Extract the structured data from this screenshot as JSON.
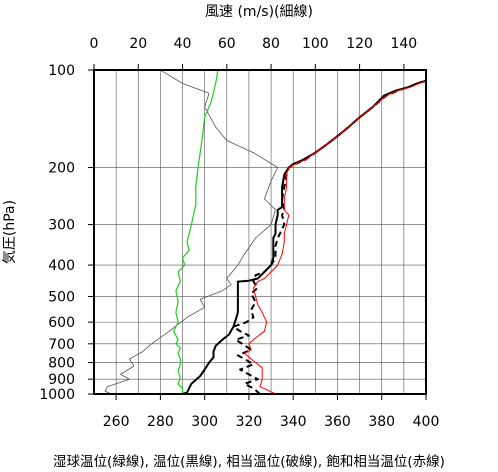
{
  "chart_data": {
    "type": "line",
    "top_axis_title": "風速 (m/s)(細線)",
    "left_axis_title": "気圧(hPa)",
    "bottom_caption": "湿球温位(緑線), 温位(黒線), 相当温位(破線), 飽和相当温位(赤線)",
    "x_temperature": {
      "range": [
        250,
        400
      ],
      "ticks": [
        "260",
        "280",
        "300",
        "320",
        "340",
        "360",
        "380",
        "400"
      ],
      "tick_values": [
        260,
        280,
        300,
        320,
        340,
        360,
        380,
        400
      ]
    },
    "x_wind": {
      "range": [
        0,
        150
      ],
      "ticks": [
        "0",
        "20",
        "40",
        "60",
        "80",
        "100",
        "120",
        "140"
      ],
      "tick_values": [
        0,
        20,
        40,
        60,
        80,
        100,
        120,
        140
      ]
    },
    "y_pressure": {
      "scale": "log",
      "range": [
        1000,
        100
      ],
      "ticks": [
        "100",
        "200",
        "300",
        "400",
        "500",
        "600",
        "700",
        "800",
        "900",
        "1000"
      ],
      "tick_values": [
        100,
        200,
        300,
        400,
        500,
        600,
        700,
        800,
        900,
        1000
      ]
    },
    "grid": true,
    "series": [
      {
        "key": "wind",
        "axis": "wind",
        "color": "#555555",
        "width": 0.8,
        "dash": "",
        "points": [
          [
            8,
            1000
          ],
          [
            5,
            980
          ],
          [
            6,
            950
          ],
          [
            12,
            920
          ],
          [
            16,
            900
          ],
          [
            12,
            870
          ],
          [
            18,
            820
          ],
          [
            16,
            780
          ],
          [
            22,
            740
          ],
          [
            26,
            700
          ],
          [
            34,
            640
          ],
          [
            42,
            580
          ],
          [
            50,
            540
          ],
          [
            48,
            510
          ],
          [
            58,
            480
          ],
          [
            62,
            460
          ],
          [
            60,
            440
          ],
          [
            65,
            400
          ],
          [
            68,
            370
          ],
          [
            73,
            330
          ],
          [
            80,
            300
          ],
          [
            82,
            270
          ],
          [
            77,
            250
          ],
          [
            80,
            220
          ],
          [
            83,
            200
          ],
          [
            72,
            180
          ],
          [
            60,
            165
          ],
          [
            55,
            150
          ],
          [
            50,
            130
          ],
          [
            52,
            118
          ],
          [
            40,
            110
          ],
          [
            32,
            102
          ],
          [
            30,
            100
          ]
        ]
      },
      {
        "key": "wet_bulb_potential_temperature",
        "axis": "temperature",
        "color": "#22cc22",
        "width": 1.2,
        "dash": "",
        "points": [
          [
            290,
            1000
          ],
          [
            290,
            960
          ],
          [
            288,
            930
          ],
          [
            289,
            890
          ],
          [
            288,
            850
          ],
          [
            289,
            810
          ],
          [
            289,
            780
          ],
          [
            288,
            750
          ],
          [
            289,
            720
          ],
          [
            287,
            700
          ],
          [
            288,
            680
          ],
          [
            286,
            640
          ],
          [
            288,
            600
          ],
          [
            287,
            560
          ],
          [
            288,
            520
          ],
          [
            287,
            480
          ],
          [
            289,
            450
          ],
          [
            288,
            420
          ],
          [
            291,
            400
          ],
          [
            290,
            380
          ],
          [
            293,
            360
          ],
          [
            292,
            340
          ],
          [
            294,
            300
          ],
          [
            296,
            260
          ],
          [
            296,
            230
          ],
          [
            297,
            200
          ],
          [
            298,
            180
          ],
          [
            299,
            160
          ],
          [
            300,
            140
          ],
          [
            303,
            125
          ],
          [
            305,
            110
          ],
          [
            306,
            100
          ]
        ]
      },
      {
        "key": "potential_temperature",
        "axis": "temperature",
        "color": "#000000",
        "width": 2.0,
        "dash": "",
        "points": [
          [
            290,
            1000
          ],
          [
            292,
            990
          ],
          [
            294,
            930
          ],
          [
            298,
            880
          ],
          [
            300,
            840
          ],
          [
            302,
            800
          ],
          [
            304,
            770
          ],
          [
            304,
            740
          ],
          [
            305,
            710
          ],
          [
            308,
            680
          ],
          [
            311,
            655
          ],
          [
            313,
            620
          ],
          [
            314,
            590
          ],
          [
            315,
            560
          ],
          [
            315,
            520
          ],
          [
            315,
            480
          ],
          [
            315,
            450
          ],
          [
            320,
            447
          ],
          [
            324,
            440
          ],
          [
            327,
            420
          ],
          [
            330,
            400
          ],
          [
            331,
            380
          ],
          [
            331,
            350
          ],
          [
            331,
            330
          ],
          [
            332,
            320
          ],
          [
            332,
            300
          ],
          [
            333,
            280
          ],
          [
            333,
            270
          ],
          [
            335,
            265
          ],
          [
            335,
            250
          ],
          [
            335,
            230
          ],
          [
            336,
            210
          ],
          [
            338,
            200
          ],
          [
            340,
            195
          ],
          [
            344,
            190
          ],
          [
            350,
            180
          ],
          [
            355,
            170
          ],
          [
            360,
            160
          ],
          [
            365,
            150
          ],
          [
            370,
            140
          ],
          [
            376,
            130
          ],
          [
            381,
            120
          ],
          [
            386,
            116
          ],
          [
            392,
            113
          ],
          [
            396,
            110
          ],
          [
            400,
            108
          ]
        ]
      },
      {
        "key": "equivalent_potential_temperature",
        "axis": "temperature",
        "color": "#000000",
        "width": 2.0,
        "dash": "6,4",
        "points": [
          [
            325,
            1000
          ],
          [
            322,
            960
          ],
          [
            318,
            930
          ],
          [
            324,
            900
          ],
          [
            320,
            870
          ],
          [
            316,
            840
          ],
          [
            322,
            810
          ],
          [
            318,
            780
          ],
          [
            315,
            760
          ],
          [
            321,
            730
          ],
          [
            317,
            700
          ],
          [
            314,
            680
          ],
          [
            320,
            660
          ],
          [
            316,
            640
          ],
          [
            313,
            620
          ],
          [
            319,
            600
          ],
          [
            322,
            580
          ],
          [
            321,
            550
          ],
          [
            323,
            520
          ],
          [
            321,
            490
          ],
          [
            324,
            470
          ],
          [
            322,
            450
          ],
          [
            323,
            430
          ],
          [
            327,
            420
          ],
          [
            330,
            400
          ],
          [
            332,
            380
          ],
          [
            332,
            350
          ],
          [
            333,
            330
          ],
          [
            334,
            320
          ],
          [
            336,
            300
          ],
          [
            335,
            280
          ],
          [
            336,
            270
          ],
          [
            335,
            250
          ],
          [
            336,
            230
          ],
          [
            337,
            210
          ],
          [
            338,
            200
          ],
          [
            341,
            195
          ],
          [
            345,
            190
          ],
          [
            350,
            180
          ],
          [
            355,
            170
          ],
          [
            360,
            160
          ],
          [
            365,
            150
          ],
          [
            370,
            140
          ],
          [
            376,
            130
          ],
          [
            382,
            120
          ],
          [
            387,
            116
          ],
          [
            392,
            113
          ],
          [
            396,
            110
          ],
          [
            400,
            108
          ]
        ]
      },
      {
        "key": "saturated_equivalent_potential_temperature",
        "axis": "temperature",
        "color": "#ff0000",
        "width": 1.0,
        "dash": "",
        "points": [
          [
            332,
            1000
          ],
          [
            328,
            970
          ],
          [
            325,
            950
          ],
          [
            326,
            900
          ],
          [
            326,
            860
          ],
          [
            326,
            830
          ],
          [
            321,
            780
          ],
          [
            318,
            750
          ],
          [
            321,
            730
          ],
          [
            320,
            700
          ],
          [
            322,
            680
          ],
          [
            327,
            640
          ],
          [
            328,
            600
          ],
          [
            326,
            560
          ],
          [
            324,
            530
          ],
          [
            323,
            500
          ],
          [
            322,
            470
          ],
          [
            324,
            450
          ],
          [
            327,
            440
          ],
          [
            330,
            420
          ],
          [
            333,
            400
          ],
          [
            335,
            370
          ],
          [
            336,
            340
          ],
          [
            336,
            320
          ],
          [
            337,
            300
          ],
          [
            338,
            280
          ],
          [
            336,
            270
          ],
          [
            336,
            250
          ],
          [
            337,
            230
          ],
          [
            337,
            210
          ],
          [
            338,
            200
          ],
          [
            341,
            195
          ],
          [
            345,
            190
          ],
          [
            350,
            180
          ],
          [
            355,
            170
          ],
          [
            360,
            160
          ],
          [
            365,
            150
          ],
          [
            370,
            140
          ],
          [
            376,
            130
          ],
          [
            382,
            120
          ],
          [
            387,
            116
          ],
          [
            393,
            113
          ],
          [
            397,
            110
          ],
          [
            400,
            108
          ]
        ]
      }
    ]
  }
}
